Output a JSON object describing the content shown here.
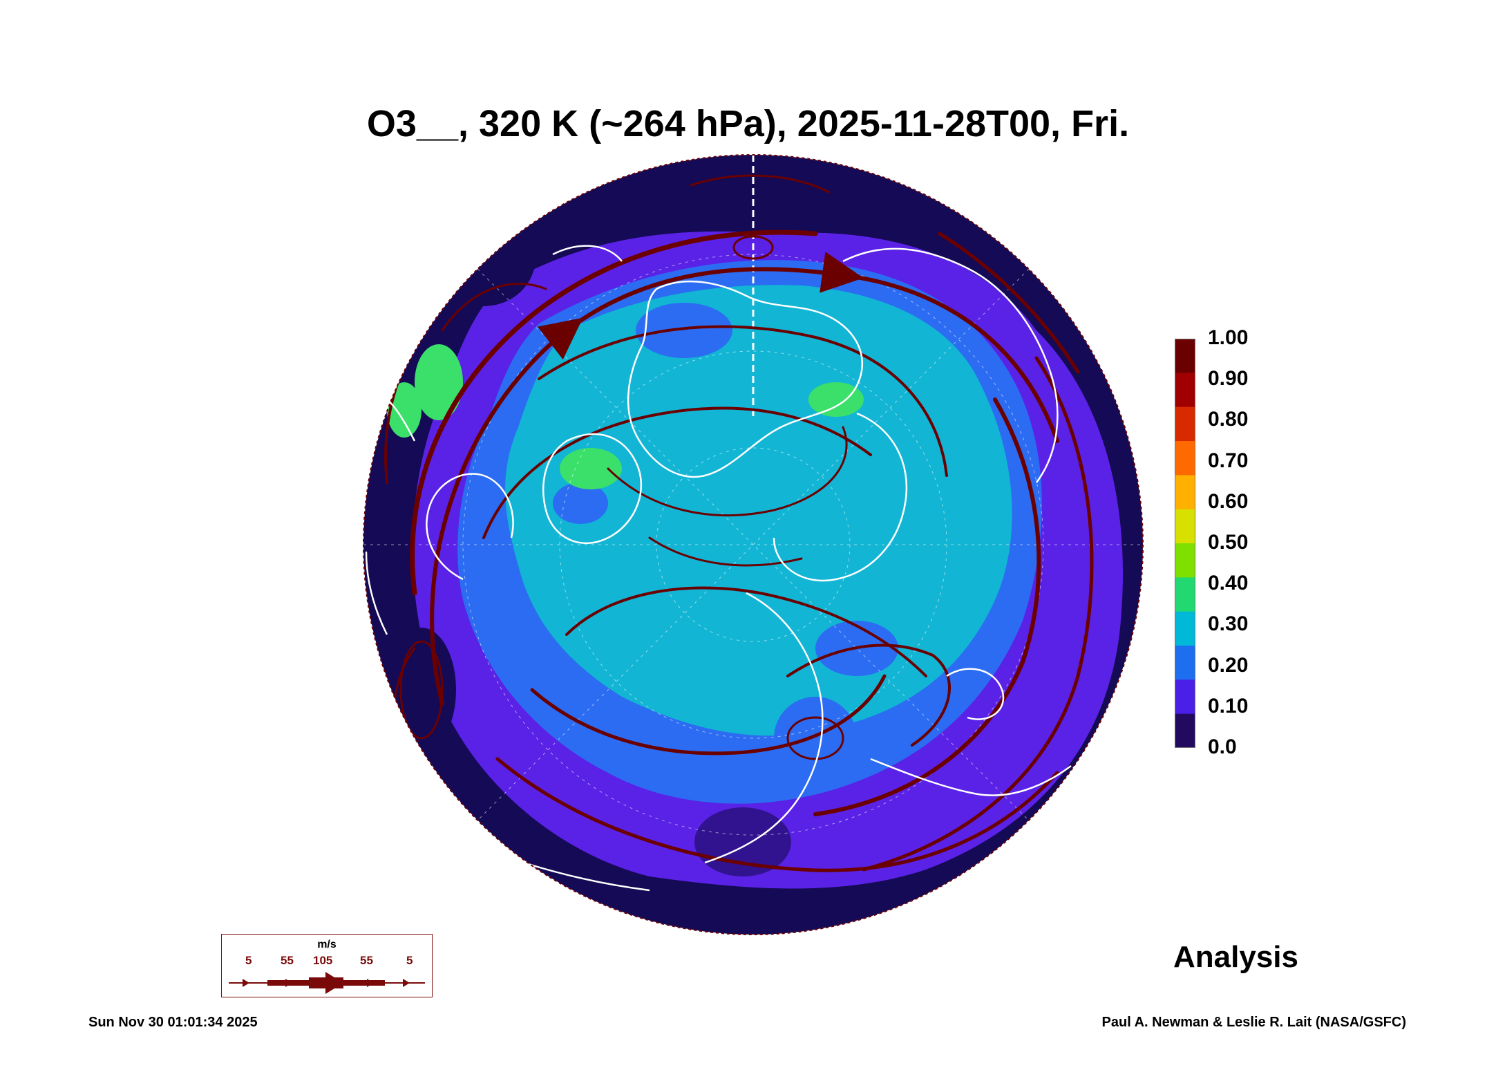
{
  "title": "O3__, 320 K (~264 hPa), 2025-11-28T00, Fri.",
  "colorbar": {
    "labels": [
      "1.00",
      "0.90",
      "0.80",
      "0.70",
      "0.60",
      "0.50",
      "0.40",
      "0.30",
      "0.20",
      "0.10",
      "0.0"
    ],
    "colors": [
      "#6b0000",
      "#a00000",
      "#d82a00",
      "#ff6a00",
      "#ffb000",
      "#d8e000",
      "#7fe000",
      "#22d870",
      "#00b8d8",
      "#1e6ff0",
      "#4a1fe8",
      "#220a60"
    ]
  },
  "legend": {
    "unit": "m/s",
    "speeds": [
      "5",
      "55",
      "105",
      "55",
      "5"
    ]
  },
  "label": "Analysis",
  "timestamp": "Sun Nov 30 01:01:34 2025",
  "credit": "Paul A. Newman & Leslie R. Lait (NASA/GSFC)",
  "map_colors": {
    "ocean_deep": "#150a55",
    "low": "#5a22e6",
    "mid": "#2b6cf2",
    "teal": "#12b5d4",
    "green": "#3ae06a",
    "stream": "#6b0000",
    "coast": "#ffffff"
  }
}
